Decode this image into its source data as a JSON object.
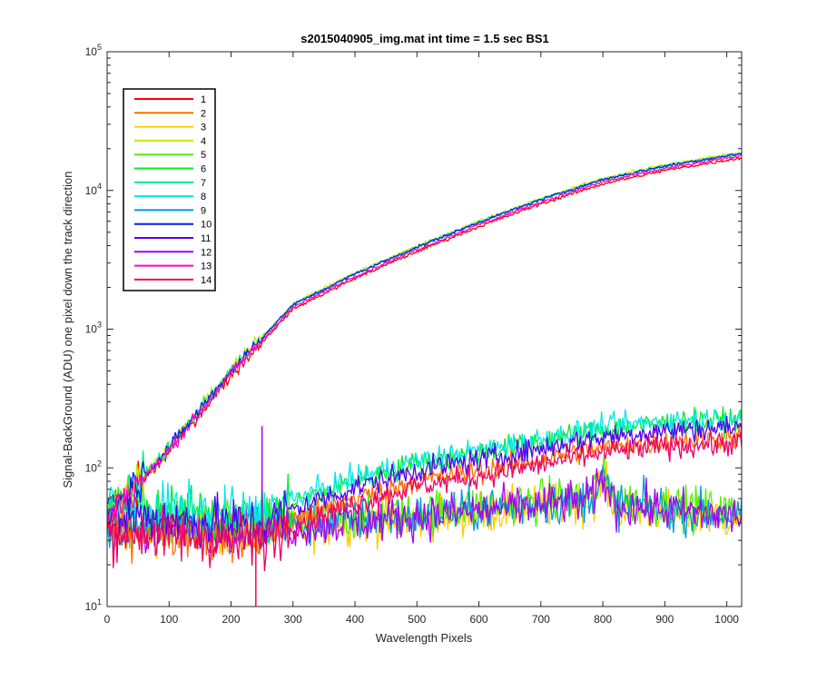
{
  "chart_data": {
    "type": "line",
    "title": "s2015040905_img.mat int time = 1.5 sec   BS1",
    "xlabel": "Wavelength Pixels",
    "ylabel": "Signal-BackGround (ADU) one pixel down the track direction",
    "xlim": [
      0,
      1024
    ],
    "ylim": [
      10,
      100000
    ],
    "yscale": "log",
    "x_ticks": [
      "0",
      "100",
      "200",
      "300",
      "400",
      "500",
      "600",
      "700",
      "800",
      "900",
      "1000"
    ],
    "y_ticks": [
      {
        "base": "10",
        "exp": "1"
      },
      {
        "base": "10",
        "exp": "2"
      },
      {
        "base": "10",
        "exp": "3"
      },
      {
        "base": "10",
        "exp": "4"
      },
      {
        "base": "10",
        "exp": "5"
      }
    ],
    "legend_position": "top-left",
    "grid": false,
    "series": [
      {
        "name": "1",
        "color": "#FF0000",
        "profile": "high",
        "scale": 0.93,
        "anchors": [
          [
            0,
            45
          ],
          [
            100,
            140
          ],
          [
            200,
            500
          ],
          [
            300,
            1500
          ],
          [
            400,
            2500
          ],
          [
            500,
            3900
          ],
          [
            600,
            5900
          ],
          [
            700,
            8600
          ],
          [
            800,
            12000
          ],
          [
            900,
            15000
          ],
          [
            1024,
            18500
          ]
        ]
      },
      {
        "name": "2",
        "color": "#FF6E00",
        "profile": "mid",
        "anchors": [
          [
            0,
            38
          ],
          [
            250,
            32
          ],
          [
            300,
            42
          ],
          [
            400,
            60
          ],
          [
            500,
            80
          ],
          [
            600,
            95
          ],
          [
            700,
            115
          ],
          [
            800,
            140
          ],
          [
            900,
            155
          ],
          [
            1024,
            165
          ]
        ]
      },
      {
        "name": "3",
        "color": "#FFCC00",
        "profile": "low",
        "scale": 0.95,
        "anchors": [
          [
            0,
            35
          ],
          [
            100,
            38
          ],
          [
            200,
            36
          ],
          [
            300,
            38
          ],
          [
            400,
            42
          ],
          [
            500,
            45
          ],
          [
            600,
            50
          ],
          [
            700,
            55
          ],
          [
            780,
            60
          ],
          [
            800,
            85
          ],
          [
            820,
            55
          ],
          [
            1024,
            45
          ]
        ]
      },
      {
        "name": "4",
        "color": "#BBEE00",
        "profile": "high",
        "scale": 1.02,
        "anchors": [
          [
            0,
            45
          ],
          [
            100,
            140
          ],
          [
            200,
            500
          ],
          [
            300,
            1500
          ],
          [
            400,
            2500
          ],
          [
            500,
            3900
          ],
          [
            600,
            5900
          ],
          [
            700,
            8600
          ],
          [
            800,
            12000
          ],
          [
            900,
            15000
          ],
          [
            1024,
            18500
          ]
        ]
      },
      {
        "name": "5",
        "color": "#55EE00",
        "profile": "low",
        "scale": 1.05,
        "anchors": [
          [
            0,
            35
          ],
          [
            100,
            38
          ],
          [
            200,
            36
          ],
          [
            300,
            38
          ],
          [
            400,
            42
          ],
          [
            500,
            45
          ],
          [
            600,
            50
          ],
          [
            700,
            55
          ],
          [
            780,
            60
          ],
          [
            800,
            85
          ],
          [
            820,
            55
          ],
          [
            1024,
            45
          ]
        ]
      },
      {
        "name": "6",
        "color": "#00EE22",
        "profile": "mid",
        "scale": 1.35,
        "anchors": [
          [
            0,
            38
          ],
          [
            250,
            32
          ],
          [
            300,
            42
          ],
          [
            400,
            60
          ],
          [
            500,
            80
          ],
          [
            600,
            95
          ],
          [
            700,
            115
          ],
          [
            800,
            140
          ],
          [
            900,
            155
          ],
          [
            1024,
            165
          ]
        ]
      },
      {
        "name": "7",
        "color": "#00EE88",
        "profile": "high",
        "scale": 1.0,
        "anchors": [
          [
            0,
            45
          ],
          [
            100,
            140
          ],
          [
            200,
            500
          ],
          [
            300,
            1500
          ],
          [
            400,
            2500
          ],
          [
            500,
            3900
          ],
          [
            600,
            5900
          ],
          [
            700,
            8600
          ],
          [
            800,
            12000
          ],
          [
            900,
            15000
          ],
          [
            1024,
            18500
          ]
        ]
      },
      {
        "name": "8",
        "color": "#00E8E8",
        "profile": "mid",
        "scale": 1.4,
        "anchors": [
          [
            0,
            38
          ],
          [
            250,
            32
          ],
          [
            300,
            42
          ],
          [
            400,
            60
          ],
          [
            500,
            80
          ],
          [
            600,
            95
          ],
          [
            700,
            115
          ],
          [
            800,
            140
          ],
          [
            900,
            155
          ],
          [
            1024,
            165
          ]
        ]
      },
      {
        "name": "9",
        "color": "#0099DD",
        "profile": "low",
        "scale": 1.0,
        "anchors": [
          [
            0,
            35
          ],
          [
            100,
            38
          ],
          [
            200,
            36
          ],
          [
            300,
            38
          ],
          [
            400,
            42
          ],
          [
            500,
            45
          ],
          [
            600,
            50
          ],
          [
            700,
            55
          ],
          [
            780,
            60
          ],
          [
            800,
            85
          ],
          [
            820,
            55
          ],
          [
            1024,
            45
          ]
        ]
      },
      {
        "name": "10",
        "color": "#0022EE",
        "profile": "high",
        "scale": 1.0,
        "anchors": [
          [
            0,
            45
          ],
          [
            100,
            140
          ],
          [
            200,
            500
          ],
          [
            300,
            1500
          ],
          [
            400,
            2500
          ],
          [
            500,
            3900
          ],
          [
            600,
            5900
          ],
          [
            700,
            8600
          ],
          [
            800,
            12000
          ],
          [
            900,
            15000
          ],
          [
            1024,
            18500
          ]
        ]
      },
      {
        "name": "11",
        "color": "#5500EE",
        "profile": "mid",
        "scale": 1.2,
        "anchors": [
          [
            0,
            38
          ],
          [
            250,
            32
          ],
          [
            300,
            42
          ],
          [
            400,
            60
          ],
          [
            500,
            80
          ],
          [
            600,
            95
          ],
          [
            700,
            115
          ],
          [
            800,
            140
          ],
          [
            900,
            155
          ],
          [
            1024,
            165
          ]
        ]
      },
      {
        "name": "12",
        "color": "#AA00EE",
        "profile": "low",
        "scale": 0.98,
        "anchors": [
          [
            0,
            35
          ],
          [
            100,
            38
          ],
          [
            200,
            36
          ],
          [
            300,
            38
          ],
          [
            400,
            42
          ],
          [
            500,
            45
          ],
          [
            600,
            50
          ],
          [
            700,
            55
          ],
          [
            780,
            60
          ],
          [
            800,
            85
          ],
          [
            820,
            55
          ],
          [
            1024,
            45
          ]
        ]
      },
      {
        "name": "13",
        "color": "#FF00CC",
        "profile": "high",
        "scale": 0.96,
        "anchors": [
          [
            0,
            45
          ],
          [
            100,
            140
          ],
          [
            200,
            500
          ],
          [
            300,
            1500
          ],
          [
            400,
            2500
          ],
          [
            500,
            3900
          ],
          [
            600,
            5900
          ],
          [
            700,
            8600
          ],
          [
            800,
            12000
          ],
          [
            900,
            15000
          ],
          [
            1024,
            18500
          ]
        ]
      },
      {
        "name": "14",
        "color": "#EE0066",
        "profile": "mid",
        "scale": 0.92,
        "anchors": [
          [
            0,
            38
          ],
          [
            250,
            32
          ],
          [
            300,
            42
          ],
          [
            400,
            60
          ],
          [
            500,
            80
          ],
          [
            600,
            95
          ],
          [
            700,
            115
          ],
          [
            800,
            140
          ],
          [
            900,
            155
          ],
          [
            1024,
            165
          ]
        ]
      }
    ],
    "annotations": [
      {
        "type": "spike",
        "x": 250,
        "y": 200,
        "color": "#AA00EE"
      },
      {
        "type": "dip",
        "x": 240,
        "y": 10,
        "color": "#EE0066"
      }
    ]
  }
}
